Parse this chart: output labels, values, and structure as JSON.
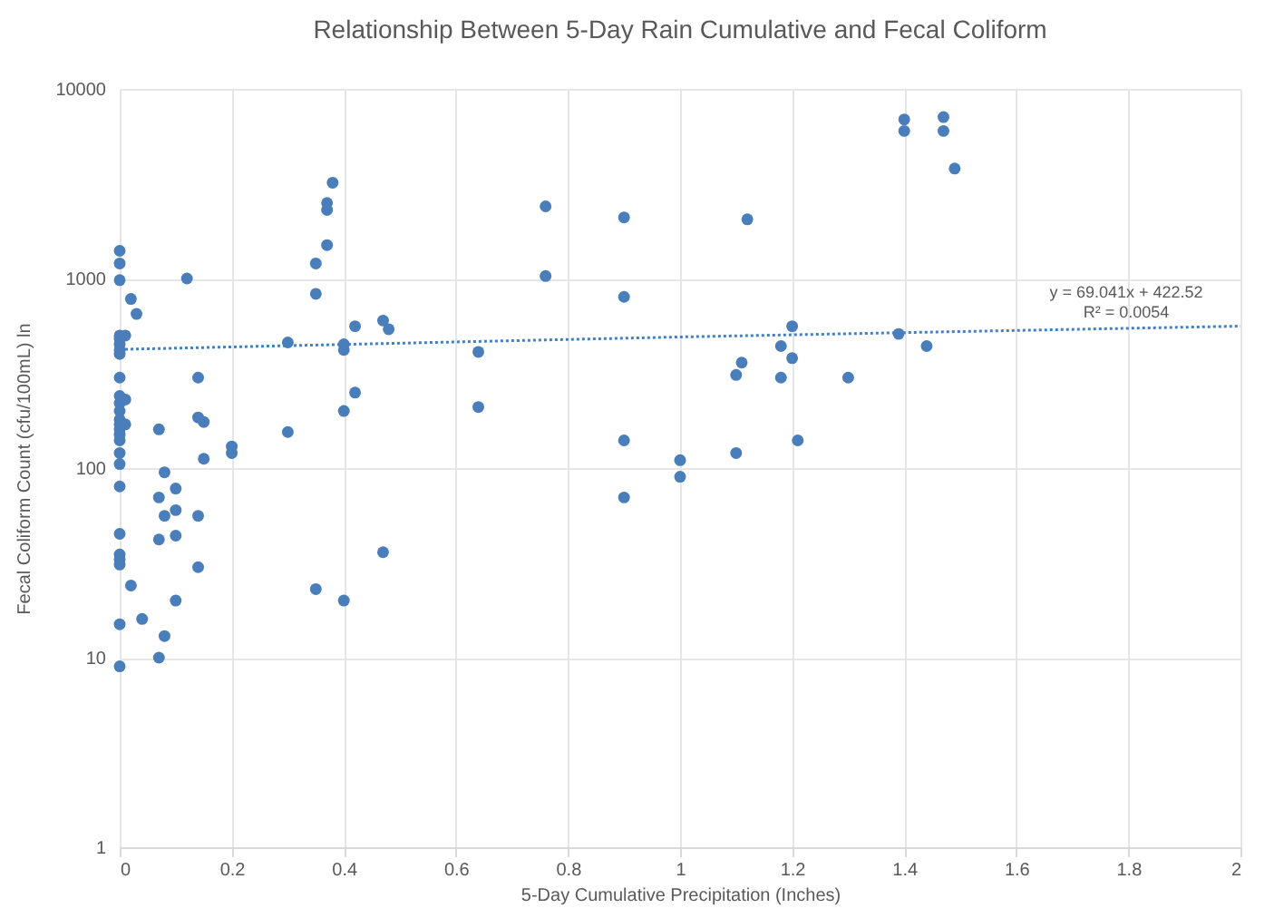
{
  "chart_data": {
    "type": "scatter",
    "title": "Relationship Between 5-Day Rain Cumulative and Fecal Coliform",
    "xlabel": "5-Day Cumulative Precipitation (Inches)",
    "ylabel": "Fecal Coliform Count (cfu/100mL) ln",
    "log": "y",
    "grid": true,
    "marker": "circle",
    "xlim": [
      0,
      2
    ],
    "xticks": [
      0,
      0.2,
      0.4,
      0.6,
      0.8,
      1,
      1.2,
      1.4,
      1.6,
      1.8,
      2
    ],
    "ylim": [
      1,
      10000
    ],
    "yticks": [
      1,
      10,
      100,
      1000,
      10000
    ],
    "series": [
      {
        "color": "#4a7ebb",
        "x": [
          0,
          0,
          0,
          0,
          0,
          0,
          0,
          0,
          0,
          0,
          0,
          0,
          0,
          0,
          0,
          0,
          0,
          0,
          0,
          0,
          0,
          0,
          0,
          0,
          0,
          0,
          0.01,
          0.01,
          0.01,
          0.02,
          0.02,
          0.03,
          0.04,
          0.07,
          0.07,
          0.07,
          0.07,
          0.08,
          0.08,
          0.08,
          0.1,
          0.1,
          0.1,
          0.1,
          0.12,
          0.14,
          0.14,
          0.14,
          0.14,
          0.15,
          0.15,
          0.2,
          0.2,
          0.3,
          0.3,
          0.35,
          0.35,
          0.35,
          0.37,
          0.37,
          0.37,
          0.38,
          0.4,
          0.4,
          0.4,
          0.4,
          0.42,
          0.42,
          0.47,
          0.47,
          0.48,
          0.64,
          0.64,
          0.76,
          0.76,
          0.9,
          0.9,
          0.9,
          0.9,
          1,
          1,
          1.1,
          1.1,
          1.11,
          1.12,
          1.18,
          1.18,
          1.2,
          1.2,
          1.21,
          1.3,
          1.39,
          1.4,
          1.4,
          1.44,
          1.47,
          1.47,
          1.49
        ],
        "values": [
          1400,
          1200,
          980,
          500,
          480,
          450,
          420,
          400,
          300,
          240,
          220,
          200,
          180,
          170,
          160,
          150,
          140,
          120,
          105,
          80,
          45,
          35,
          33,
          31,
          15,
          9,
          500,
          230,
          170,
          780,
          24,
          650,
          16,
          160,
          70,
          42,
          10,
          95,
          56,
          13,
          78,
          60,
          44,
          20,
          1000,
          300,
          185,
          56,
          30,
          175,
          112,
          130,
          120,
          460,
          155,
          1200,
          830,
          23,
          2500,
          2300,
          1500,
          3200,
          450,
          420,
          200,
          20,
          560,
          250,
          600,
          36,
          540,
          410,
          210,
          2400,
          1030,
          2100,
          800,
          140,
          70,
          110,
          90,
          310,
          120,
          360,
          2050,
          440,
          300,
          560,
          380,
          140,
          300,
          510,
          6900,
          6000,
          440,
          7100,
          6000,
          3800
        ]
      },
      {
        "type": "line",
        "color": "#4a7ebb",
        "line_style": "dotted",
        "marker": "none",
        "x": [
          0,
          1,
          2
        ],
        "values": [
          422.52,
          491.56,
          560.6
        ]
      }
    ],
    "annotations": [
      "y = 69.041x + 422.52",
      "R² = 0.0054"
    ]
  }
}
